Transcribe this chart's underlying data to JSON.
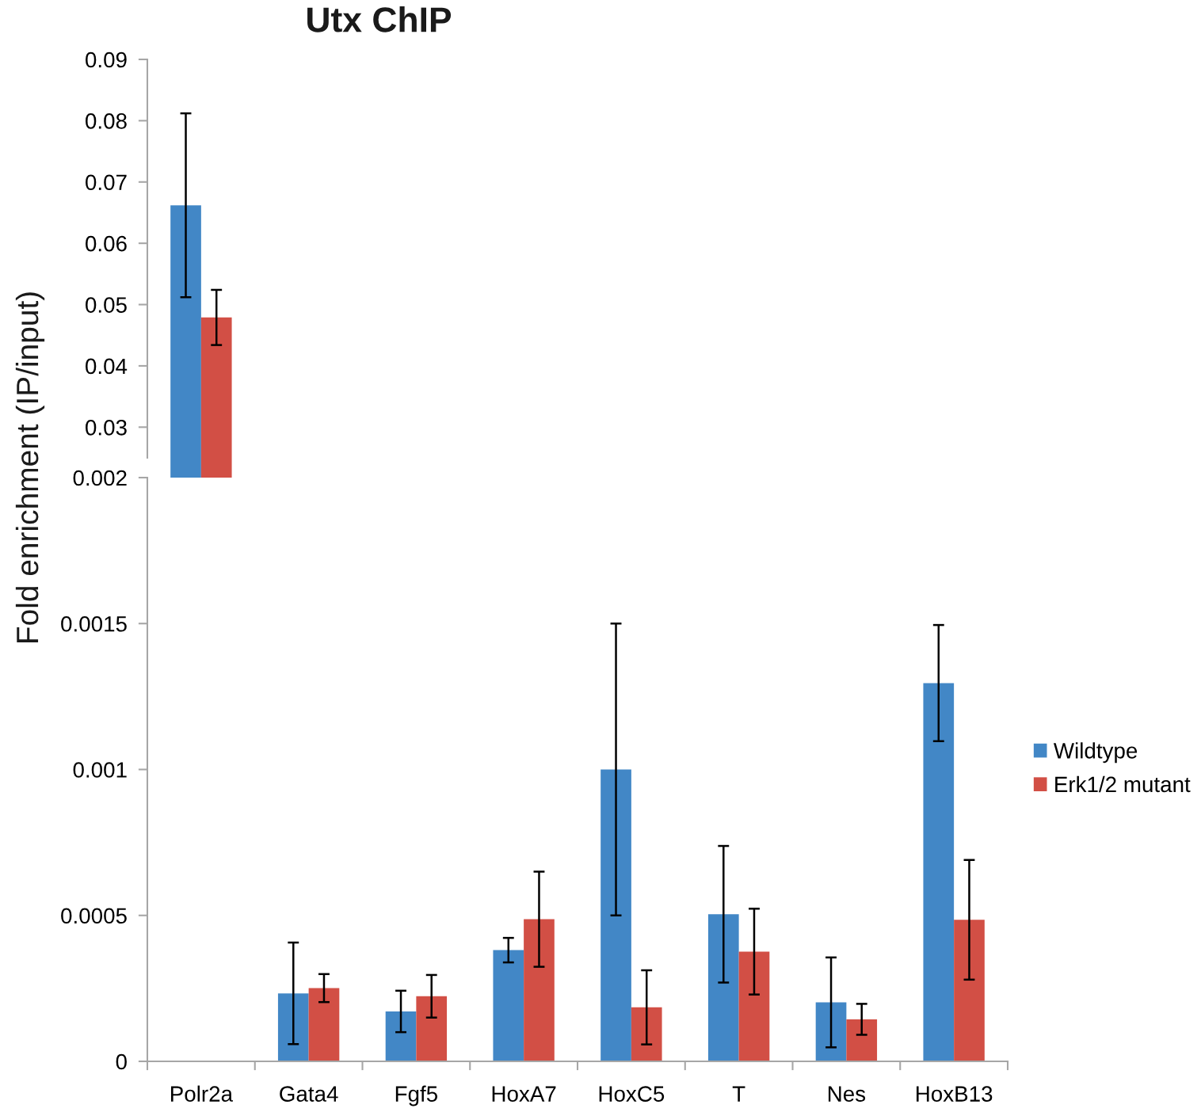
{
  "chart_data": [
    {
      "type": "bar",
      "title": "Utx ChIP",
      "categories": [
        null,
        null,
        null,
        null,
        null,
        null,
        null,
        null
      ],
      "series": [
        {
          "color": "#4287c6",
          "values": [
            0.0662,
            null,
            null,
            null,
            null,
            null,
            null,
            null
          ],
          "errors": [
            0.015,
            null,
            null,
            null,
            null,
            null,
            null,
            null
          ]
        },
        {
          "color": "#d24f45",
          "values": [
            0.0479,
            null,
            null,
            null,
            null,
            null,
            null,
            null
          ],
          "errors": [
            0.0045,
            null,
            null,
            null,
            null,
            null,
            null,
            null
          ]
        }
      ],
      "ylim": [
        0.025,
        0.09
      ],
      "yticks": [
        0.03,
        0.04,
        0.05,
        0.06,
        0.07,
        0.08,
        0.09
      ],
      "tick_labels": "y"
    },
    {
      "type": "bar",
      "ylabel": "Fold enrichment (IP/input)",
      "categories": [
        "Polr2a",
        "Gata4",
        "Fgf5",
        "HoxA7",
        "HoxC5",
        "T",
        "Nes",
        "HoxB13"
      ],
      "series": [
        {
          "name": "Wildtype",
          "color": "#4287c6",
          "values": [
            null,
            0.000233,
            0.000171,
            0.000381,
            0.001,
            0.000504,
            0.000202,
            0.001296
          ],
          "errors": [
            null,
            0.000174,
            7.1e-05,
            4.2e-05,
            0.0005,
            0.000234,
            0.000154,
            0.000199
          ]
        },
        {
          "name": "Erk1/2 mutant",
          "color": "#d24f45",
          "values": [
            null,
            0.000251,
            0.000223,
            0.000487,
            0.000185,
            0.000376,
            0.000144,
            0.000485
          ],
          "errors": [
            null,
            4.8e-05,
            7.3e-05,
            0.000163,
            0.000127,
            0.000147,
            5.3e-05,
            0.000205
          ]
        }
      ],
      "ylim": [
        0,
        0.002
      ],
      "yticks": [
        0,
        0.0005,
        0.001,
        0.0015,
        0.002
      ],
      "legend": "right"
    }
  ]
}
